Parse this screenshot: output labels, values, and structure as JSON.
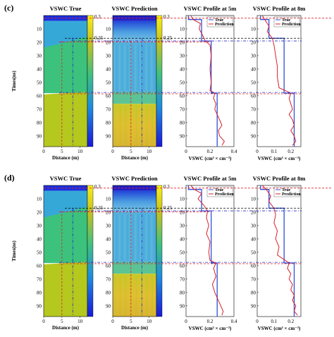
{
  "colors": {
    "true_line": "#2f50d8",
    "prediction_line": "#d6202a",
    "guide_red": "#e0202a",
    "guide_blue": "#2828c8",
    "guide_black": "#000000",
    "layer_top": "#1a30e0",
    "layer_2": "#36a8d8",
    "layer_3": "#3cc27c",
    "layer_4": "#b4c81e"
  },
  "panels": [
    {
      "label": "(c)",
      "titles": {
        "true_map": "VSWC True",
        "pred_map": "VSWC Prediction",
        "profile_5m": "VSWC Profile at 5m",
        "profile_8m": "VSWC Profile at 8m"
      },
      "ylabel": "Times(ns)",
      "xlabel_map": "Distance (m)",
      "xlabel_profile": "VSWC (cm³ × cm⁻³)",
      "colorbar_labels": [
        "0.3",
        "0.25"
      ],
      "legend": [
        "True",
        "Prediction"
      ]
    },
    {
      "label": "(d)",
      "titles": {
        "true_map": "VSWC True",
        "pred_map": "VSWC Prediction",
        "profile_5m": "VSWC Profile at 5m",
        "profile_8m": "VSWC Profile at 8m"
      },
      "ylabel": "Times(ns)",
      "xlabel_map": "Distance (m)",
      "xlabel_profile": "VSWC (cm³ × cm⁻³)",
      "colorbar_labels": [
        "0.3",
        "0.25"
      ],
      "legend": [
        "True",
        "Prediction"
      ]
    }
  ],
  "chart_data": [
    {
      "type": "heatmap",
      "name": "VSWC True (c)",
      "x_ticks": [
        0,
        5,
        10
      ],
      "y_ticks": [
        10,
        20,
        30,
        40,
        50,
        60,
        70,
        80,
        90
      ],
      "xlim": [
        0,
        12
      ],
      "ylim": [
        0,
        98
      ],
      "layers": [
        {
          "from": 0,
          "to": 4,
          "value": 0.05
        },
        {
          "from": 4,
          "to": 19,
          "value": 0.13
        },
        {
          "from": 19,
          "to": 58,
          "value": 0.18
        },
        {
          "from": 58,
          "to": 98,
          "value": 0.23
        }
      ]
    },
    {
      "type": "line",
      "name": "VSWC Profile at 5m (c)",
      "x_ticks": [
        0,
        0.2,
        0.4
      ],
      "xlim": [
        0,
        0.4
      ],
      "y_ticks": [
        10,
        20,
        30,
        40,
        50,
        60,
        70,
        80,
        90
      ],
      "ylim": [
        0,
        98
      ],
      "series": [
        {
          "name": "True",
          "y": [
            0,
            3,
            3,
            19,
            19,
            58,
            58,
            98
          ],
          "x": [
            0.02,
            0.02,
            0.13,
            0.13,
            0.21,
            0.21,
            0.26,
            0.26
          ]
        },
        {
          "name": "Prediction",
          "y": [
            0,
            3,
            6,
            10,
            15,
            19,
            22,
            30,
            40,
            50,
            56,
            58,
            62,
            66,
            70,
            74,
            78,
            82,
            86,
            90,
            94,
            97
          ],
          "x": [
            0.04,
            0.06,
            0.12,
            0.11,
            0.14,
            0.16,
            0.2,
            0.21,
            0.2,
            0.21,
            0.2,
            0.24,
            0.23,
            0.25,
            0.24,
            0.26,
            0.28,
            0.3,
            0.27,
            0.28,
            0.32,
            0.3
          ]
        }
      ]
    },
    {
      "type": "line",
      "name": "VSWC Profile at 8m (c)",
      "x_ticks": [
        0,
        0.1,
        0.2
      ],
      "xlim": [
        0,
        0.26
      ],
      "y_ticks": [
        10,
        20,
        30,
        40,
        50,
        60,
        70,
        80,
        90
      ],
      "ylim": [
        0,
        98
      ],
      "series": [
        {
          "name": "True",
          "y": [
            0,
            3,
            3,
            17,
            17,
            58,
            58,
            98
          ],
          "x": [
            0.02,
            0.02,
            0.07,
            0.07,
            0.16,
            0.16,
            0.22,
            0.22
          ]
        },
        {
          "name": "Prediction",
          "y": [
            0,
            4,
            8,
            12,
            17,
            22,
            30,
            38,
            46,
            54,
            58,
            62,
            66,
            70,
            74,
            78,
            82,
            86,
            90,
            94,
            97
          ],
          "x": [
            0.03,
            0.05,
            0.07,
            0.06,
            0.09,
            0.1,
            0.11,
            0.12,
            0.12,
            0.13,
            0.2,
            0.19,
            0.2,
            0.21,
            0.19,
            0.21,
            0.22,
            0.2,
            0.22,
            0.23,
            0.21
          ]
        }
      ]
    },
    {
      "type": "heatmap",
      "name": "VSWC True (d)",
      "x_ticks": [
        0,
        5,
        10
      ],
      "y_ticks": [
        10,
        20,
        30,
        40,
        50,
        60,
        70,
        80,
        90
      ],
      "xlim": [
        0,
        12
      ],
      "ylim": [
        0,
        98
      ],
      "layers": [
        {
          "from": 0,
          "to": 4,
          "value": 0.05
        },
        {
          "from": 4,
          "to": 19,
          "value": 0.13
        },
        {
          "from": 19,
          "to": 58,
          "value": 0.18
        },
        {
          "from": 58,
          "to": 98,
          "value": 0.23
        }
      ]
    },
    {
      "type": "line",
      "name": "VSWC Profile at 5m (d)",
      "x_ticks": [
        0,
        0.2,
        0.4
      ],
      "xlim": [
        0,
        0.4
      ],
      "y_ticks": [
        10,
        20,
        30,
        40,
        50,
        60,
        70,
        80,
        90
      ],
      "ylim": [
        0,
        98
      ],
      "series": [
        {
          "name": "True",
          "y": [
            0,
            3,
            3,
            19,
            19,
            58,
            58,
            98
          ],
          "x": [
            0.02,
            0.02,
            0.13,
            0.13,
            0.21,
            0.21,
            0.26,
            0.26
          ]
        },
        {
          "name": "Prediction",
          "y": [
            0,
            3,
            6,
            10,
            15,
            19,
            24,
            30,
            36,
            42,
            50,
            56,
            58,
            62,
            68,
            74,
            80,
            86,
            90,
            94,
            97
          ],
          "x": [
            0.04,
            0.07,
            0.13,
            0.1,
            0.15,
            0.18,
            0.17,
            0.19,
            0.17,
            0.2,
            0.19,
            0.2,
            0.25,
            0.23,
            0.25,
            0.22,
            0.24,
            0.27,
            0.29,
            0.31,
            0.3
          ]
        }
      ]
    },
    {
      "type": "line",
      "name": "VSWC Profile at 8m (d)",
      "x_ticks": [
        0,
        0.1,
        0.2
      ],
      "xlim": [
        0,
        0.26
      ],
      "y_ticks": [
        10,
        20,
        30,
        40,
        50,
        60,
        70,
        80,
        90
      ],
      "ylim": [
        0,
        98
      ],
      "series": [
        {
          "name": "True",
          "y": [
            0,
            3,
            3,
            17,
            17,
            58,
            58,
            98
          ],
          "x": [
            0.02,
            0.02,
            0.07,
            0.07,
            0.16,
            0.16,
            0.22,
            0.22
          ]
        },
        {
          "name": "Prediction",
          "y": [
            0,
            4,
            8,
            12,
            17,
            22,
            28,
            34,
            40,
            46,
            52,
            58,
            62,
            66,
            70,
            74,
            78,
            82,
            86,
            90,
            94,
            97
          ],
          "x": [
            0.03,
            0.06,
            0.08,
            0.07,
            0.1,
            0.11,
            0.1,
            0.12,
            0.11,
            0.13,
            0.12,
            0.19,
            0.18,
            0.2,
            0.19,
            0.21,
            0.2,
            0.22,
            0.21,
            0.23,
            0.22,
            0.24
          ]
        }
      ]
    }
  ]
}
